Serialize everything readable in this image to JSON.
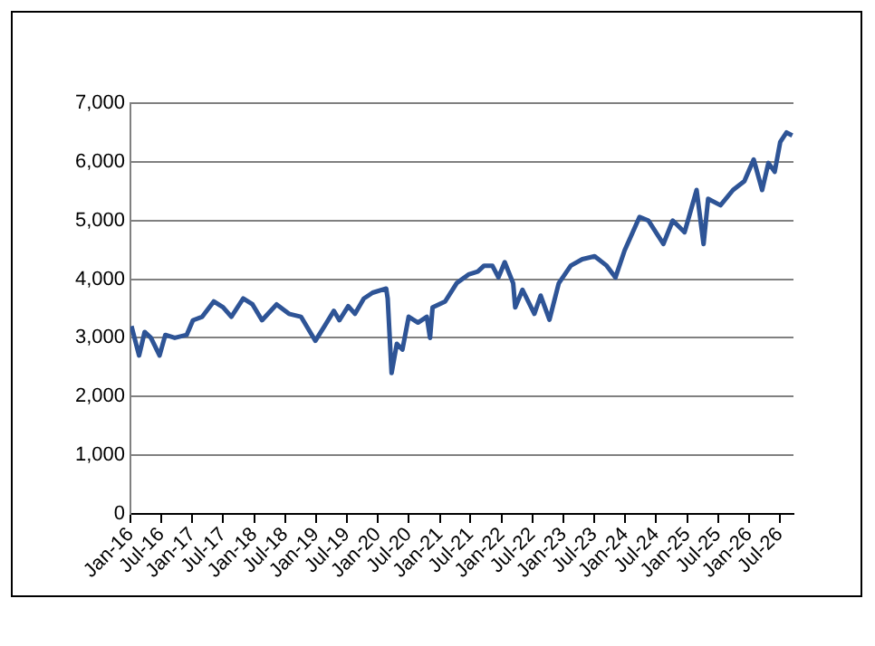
{
  "chart_data": {
    "type": "line",
    "x": [
      "2016-01-07",
      "2016-02-21",
      "2016-03-25",
      "2016-05-01",
      "2016-06-21",
      "2016-07-25",
      "2016-09-19",
      "2016-11-28",
      "2017-01-04",
      "2017-02-28",
      "2017-05-07",
      "2017-07-01",
      "2017-08-19",
      "2017-10-28",
      "2017-12-22",
      "2018-02-16",
      "2018-05-13",
      "2018-07-25",
      "2018-10-04",
      "2018-12-28",
      "2019-02-22",
      "2019-04-16",
      "2019-05-19",
      "2019-07-10",
      "2019-08-19",
      "2019-10-10",
      "2019-12-01",
      "2020-02-19",
      "2020-02-28",
      "2020-03-22",
      "2020-04-22",
      "2020-05-25",
      "2020-07-01",
      "2020-08-25",
      "2020-10-16",
      "2020-11-04",
      "2020-11-19",
      "2021-02-01",
      "2021-04-10",
      "2021-06-19",
      "2021-08-13",
      "2021-09-19",
      "2021-11-07",
      "2021-12-13",
      "2022-01-19",
      "2022-03-10",
      "2022-03-22",
      "2022-05-04",
      "2022-07-13",
      "2022-08-19",
      "2022-10-10",
      "2022-12-04",
      "2023-02-13",
      "2023-04-22",
      "2023-07-04",
      "2023-09-13",
      "2023-11-04",
      "2023-12-28",
      "2024-03-25",
      "2024-05-16",
      "2024-08-13",
      "2024-10-07",
      "2024-12-16",
      "2025-02-25",
      "2025-04-07",
      "2025-05-04",
      "2025-07-16",
      "2025-09-28",
      "2025-12-04",
      "2026-01-28",
      "2026-03-19",
      "2026-04-25",
      "2026-06-01",
      "2026-07-04",
      "2026-08-10",
      "2026-09-13"
    ],
    "series": [
      {
        "color": "#2e5496",
        "values": [
          3200,
          2700,
          3100,
          3000,
          2700,
          3050,
          3000,
          3050,
          3300,
          3360,
          3620,
          3520,
          3360,
          3670,
          3570,
          3300,
          3570,
          3410,
          3360,
          2950,
          3210,
          3460,
          3300,
          3540,
          3410,
          3670,
          3770,
          3840,
          3670,
          2400,
          2900,
          2800,
          3360,
          3260,
          3360,
          3000,
          3520,
          3620,
          3930,
          4080,
          4130,
          4230,
          4230,
          4030,
          4290,
          3930,
          3520,
          3820,
          3410,
          3720,
          3310,
          3930,
          4230,
          4340,
          4390,
          4230,
          4030,
          4490,
          5060,
          5000,
          4600,
          5000,
          4800,
          5520,
          4600,
          5370,
          5260,
          5520,
          5670,
          6040,
          5520,
          5980,
          5830,
          6340,
          6500,
          6450
        ]
      }
    ],
    "xlim": [
      "2016-01-01",
      "2026-09-20"
    ],
    "xticks": [
      {
        "value": "2016-01-01",
        "label": "Jan-16"
      },
      {
        "value": "2016-07-01",
        "label": "Jul-16"
      },
      {
        "value": "2017-01-01",
        "label": "Jan-17"
      },
      {
        "value": "2017-07-01",
        "label": "Jul-17"
      },
      {
        "value": "2018-01-01",
        "label": "Jan-18"
      },
      {
        "value": "2018-07-01",
        "label": "Jul-18"
      },
      {
        "value": "2019-01-01",
        "label": "Jan-19"
      },
      {
        "value": "2019-07-01",
        "label": "Jul-19"
      },
      {
        "value": "2020-01-01",
        "label": "Jan-20"
      },
      {
        "value": "2020-07-01",
        "label": "Jul-20"
      },
      {
        "value": "2021-01-01",
        "label": "Jan-21"
      },
      {
        "value": "2021-07-01",
        "label": "Jul-21"
      },
      {
        "value": "2022-01-01",
        "label": "Jan-22"
      },
      {
        "value": "2022-07-01",
        "label": "Jul-22"
      },
      {
        "value": "2023-01-01",
        "label": "Jan-23"
      },
      {
        "value": "2023-07-01",
        "label": "Jul-23"
      },
      {
        "value": "2024-01-01",
        "label": "Jan-24"
      },
      {
        "value": "2024-07-01",
        "label": "Jul-24"
      },
      {
        "value": "2025-01-01",
        "label": "Jan-25"
      },
      {
        "value": "2025-07-01",
        "label": "Jul-25"
      },
      {
        "value": "2026-01-01",
        "label": "Jan-26"
      },
      {
        "value": "2026-07-01",
        "label": "Jul-26"
      }
    ],
    "ylim": [
      0,
      7000
    ],
    "yticks": [
      0,
      {
        "value": 1000,
        "label": "1,000"
      },
      {
        "value": 2000,
        "label": "2,000"
      },
      {
        "value": 3000,
        "label": "3,000"
      },
      {
        "value": 4000,
        "label": "4,000"
      },
      {
        "value": 5000,
        "label": "5,000"
      },
      {
        "value": 6000,
        "label": "6,000"
      },
      {
        "value": 7000,
        "label": "7,000"
      }
    ],
    "grid": "y",
    "legend": false,
    "marker": "none",
    "line_style": "solid"
  }
}
